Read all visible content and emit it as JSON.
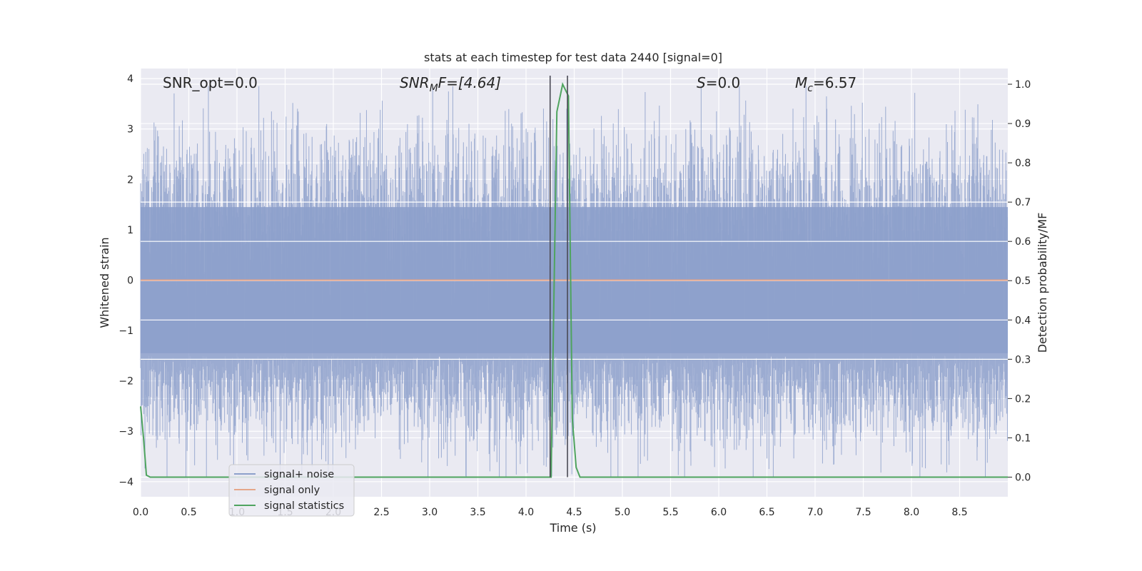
{
  "chart_data": {
    "type": "line",
    "title": "stats at each timestep for test data 2440 [signal=0]",
    "xlabel": "Time (s)",
    "ylabel_left": "Whitened strain",
    "ylabel_right": "Detection probability/MF",
    "xlim": [
      0,
      9.0
    ],
    "ylim_left": [
      -4.3,
      4.2
    ],
    "ylim_right": [
      -0.05,
      1.04
    ],
    "x_ticks": [
      "0.0",
      "0.5",
      "1.0",
      "1.5",
      "2.0",
      "2.5",
      "3.0",
      "3.5",
      "4.0",
      "4.5",
      "5.0",
      "5.5",
      "6.0",
      "6.5",
      "7.0",
      "7.5",
      "8.0",
      "8.5"
    ],
    "y_ticks_left": [
      "−4",
      "−3",
      "−2",
      "−1",
      "0",
      "1",
      "2",
      "3",
      "4"
    ],
    "y_ticks_right": [
      "0.0",
      "0.1",
      "0.2",
      "0.3",
      "0.4",
      "0.5",
      "0.6",
      "0.7",
      "0.8",
      "0.9",
      "1.0"
    ],
    "grid": true,
    "legend_position": "lower-left",
    "annotations": {
      "snr_opt": "SNR_opt=0.0",
      "snr_mf_main": "SNR",
      "snr_mf_sub": "M",
      "snr_mf_tail": "F=[4.64]",
      "s_main": "S",
      "s_tail": "=0.0",
      "mc_main": "M",
      "mc_sub": "c",
      "mc_tail": "=6.57"
    },
    "vertical_lines_x": [
      4.25,
      4.43
    ],
    "series": [
      {
        "name": "signal+ noise",
        "color": "#8da0cb",
        "axis": "left",
        "noise_band_sigma": 0.9,
        "duration_s": 9.0
      },
      {
        "name": "signal only",
        "color": "#e5a68a",
        "axis": "left",
        "x": [
          0,
          9.0
        ],
        "y": [
          0,
          0
        ]
      },
      {
        "name": "signal statistics",
        "color": "#4fa45f",
        "axis": "right",
        "x": [
          0.0,
          0.03,
          0.06,
          0.1,
          4.24,
          4.26,
          4.32,
          4.38,
          4.44,
          4.48,
          4.52,
          4.56,
          9.0
        ],
        "y": [
          0.18,
          0.1,
          0.005,
          0.0,
          0.0,
          0.0,
          0.93,
          1.0,
          0.97,
          0.15,
          0.025,
          0.0,
          0.0
        ]
      }
    ]
  }
}
